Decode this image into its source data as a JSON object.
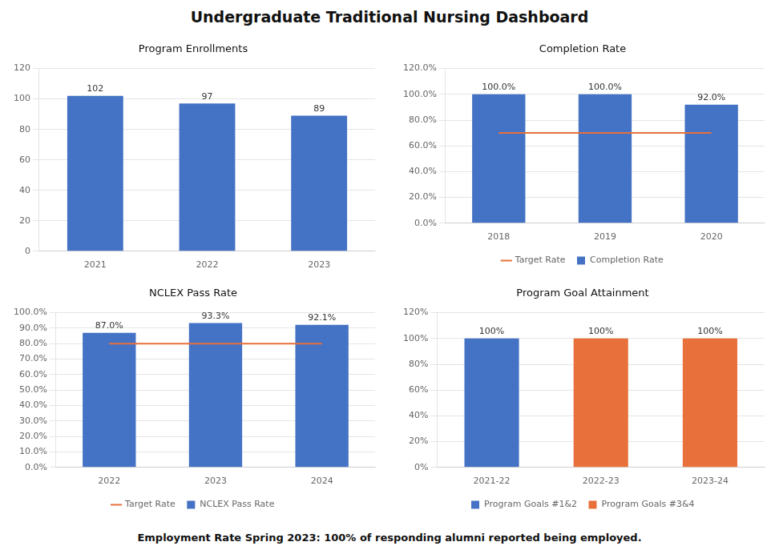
{
  "title": "Undergraduate Traditional Nursing Dashboard",
  "annotations": [
    "Employment Rate Spring 2023: 100% of responding alumni reported being employed."
  ],
  "chart_data": [
    {
      "type": "bar",
      "title": "Program Enrollments",
      "categories": [
        "2021",
        "2022",
        "2023"
      ],
      "values": [
        102,
        97,
        89
      ],
      "color": "#4472c4",
      "ylim": [
        0,
        120
      ],
      "yticks": [
        0,
        20,
        40,
        60,
        80,
        100,
        120
      ],
      "grid": "y",
      "data_labels": true
    },
    {
      "type": "bar",
      "title": "Completion Rate",
      "categories": [
        "2018",
        "2019",
        "2020"
      ],
      "series": [
        {
          "name": "Completion Rate",
          "type": "bar",
          "color": "#4472c4",
          "values": [
            100.0,
            100.0,
            92.0
          ],
          "value_labels": [
            "100.0%",
            "100.0%",
            "92.0%"
          ]
        },
        {
          "name": "Target Rate",
          "type": "line",
          "color": "#e8703a",
          "values": [
            70.0,
            70.0,
            70.0
          ]
        }
      ],
      "ylim": [
        0.0,
        120.0
      ],
      "yticks": [
        {
          "value": 0,
          "label": "0.0%"
        },
        {
          "value": 20,
          "label": "20.0%"
        },
        {
          "value": 40,
          "label": "40.0%"
        },
        {
          "value": 60,
          "label": "60.0%"
        },
        {
          "value": 80,
          "label": "80.0%"
        },
        {
          "value": 100,
          "label": "100.0%"
        },
        {
          "value": 120,
          "label": "120.0%"
        }
      ],
      "grid": "y",
      "legend": "bottom",
      "data_labels": true
    },
    {
      "type": "bar",
      "title": "NCLEX Pass Rate",
      "categories": [
        "2022",
        "2023",
        "2024"
      ],
      "series": [
        {
          "name": "NCLEX Pass Rate",
          "type": "bar",
          "color": "#4472c4",
          "values": [
            87.0,
            93.3,
            92.1
          ],
          "value_labels": [
            "87.0%",
            "93.3%",
            "92.1%"
          ]
        },
        {
          "name": "Target Rate",
          "type": "line",
          "color": "#e8703a",
          "values": [
            80.0,
            80.0,
            80.0
          ]
        }
      ],
      "ylim": [
        0.0,
        100.0
      ],
      "yticks": [
        {
          "value": 0,
          "label": "0.0%"
        },
        {
          "value": 10,
          "label": "10.0%"
        },
        {
          "value": 20,
          "label": "20.0%"
        },
        {
          "value": 30,
          "label": "30.0%"
        },
        {
          "value": 40,
          "label": "40.0%"
        },
        {
          "value": 50,
          "label": "50.0%"
        },
        {
          "value": 60,
          "label": "60.0%"
        },
        {
          "value": 70,
          "label": "70.0%"
        },
        {
          "value": 80,
          "label": "80.0%"
        },
        {
          "value": 90,
          "label": "90.0%"
        },
        {
          "value": 100,
          "label": "100.0%"
        }
      ],
      "grid": "y",
      "legend": "bottom",
      "data_labels": true
    },
    {
      "type": "bar",
      "title": "Program Goal Attainment",
      "categories": [
        "2021-22",
        "2022-23",
        "2023-24"
      ],
      "series": [
        {
          "name": "Program Goals #1&2",
          "type": "bar",
          "color": "#4472c4",
          "values": [
            100,
            null,
            null
          ],
          "value_labels": [
            "100%",
            null,
            null
          ]
        },
        {
          "name": "Program Goals #3&4",
          "type": "bar",
          "color": "#e8703a",
          "values": [
            null,
            100,
            100
          ],
          "value_labels": [
            null,
            "100%",
            "100%"
          ]
        }
      ],
      "stacked": true,
      "ylim": [
        0,
        120
      ],
      "yticks": [
        {
          "value": 0,
          "label": "0%"
        },
        {
          "value": 20,
          "label": "20%"
        },
        {
          "value": 40,
          "label": "40%"
        },
        {
          "value": 60,
          "label": "60%"
        },
        {
          "value": 80,
          "label": "80%"
        },
        {
          "value": 100,
          "label": "100%"
        },
        {
          "value": 120,
          "label": "120%"
        }
      ],
      "grid": "y",
      "legend": "bottom",
      "data_labels": true
    }
  ]
}
